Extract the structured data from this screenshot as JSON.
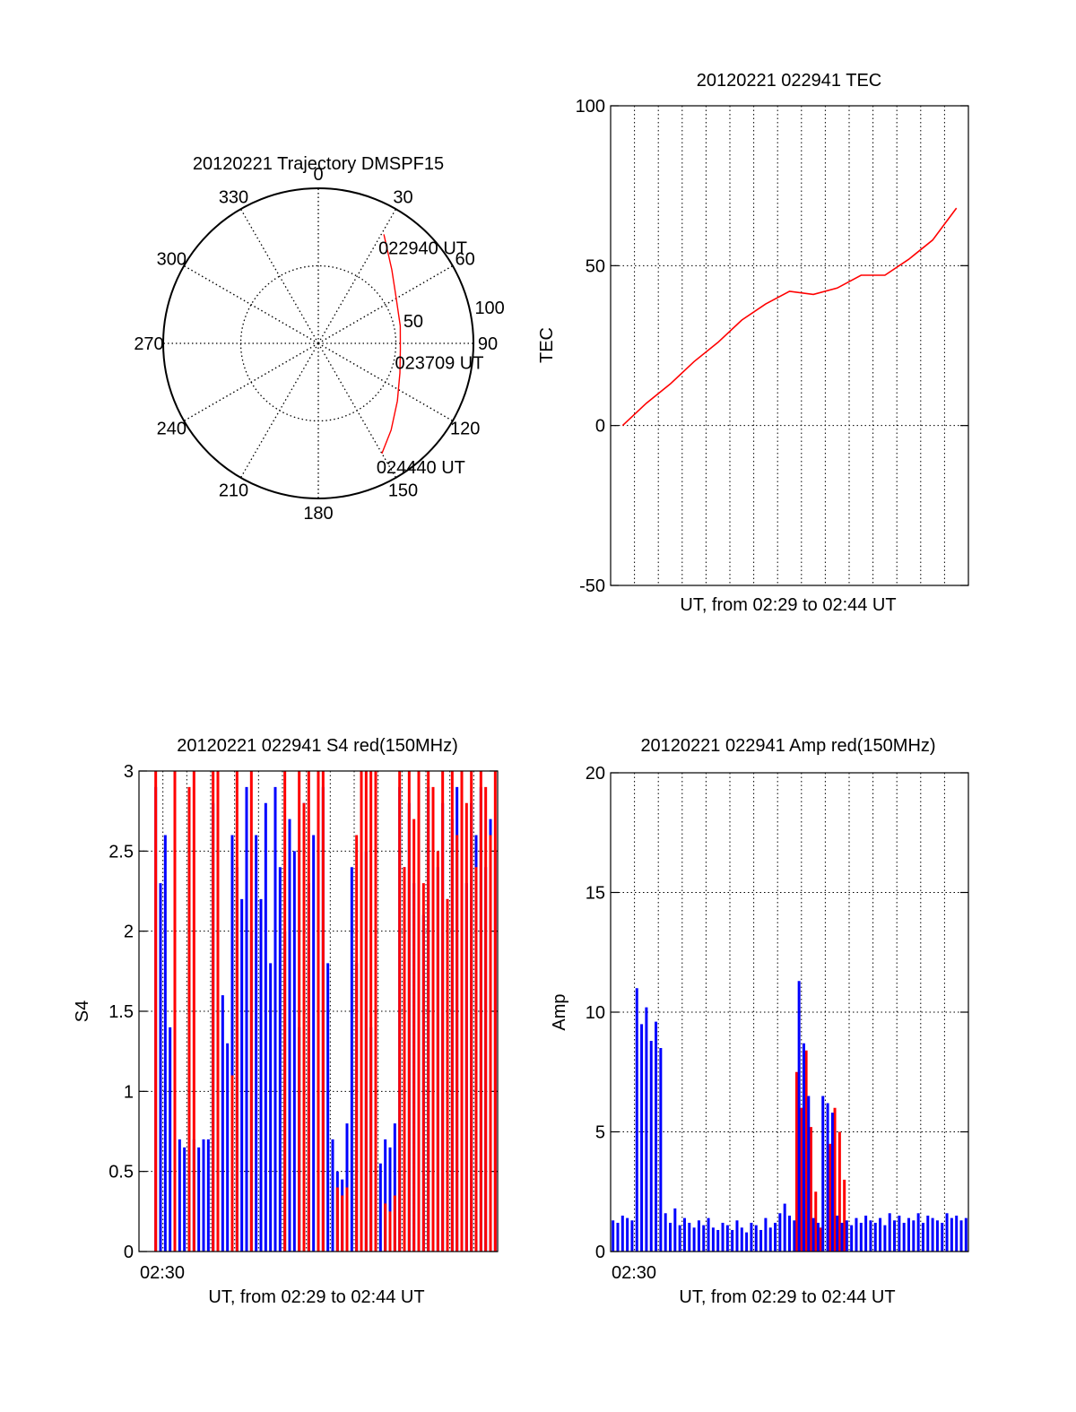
{
  "chart_data": [
    {
      "type": "polar",
      "title": "20120221 Trajectory DMSPF15",
      "angle_ticks": [
        "0",
        "30",
        "60",
        "90",
        "120",
        "150",
        "180",
        "210",
        "240",
        "270",
        "300",
        "330"
      ],
      "radius_ticks": [
        "50",
        "100"
      ],
      "radius_max": 100,
      "grid": "dotted",
      "series": [
        {
          "color": "#ff0000",
          "points": [
            {
              "azimuth": 31,
              "radius": 82
            },
            {
              "azimuth": 45,
              "radius": 67
            },
            {
              "azimuth": 60,
              "radius": 58
            },
            {
              "azimuth": 78,
              "radius": 54
            },
            {
              "azimuth": 94,
              "radius": 53
            },
            {
              "azimuth": 110,
              "radius": 56
            },
            {
              "azimuth": 126,
              "radius": 63
            },
            {
              "azimuth": 140,
              "radius": 73
            },
            {
              "azimuth": 150,
              "radius": 82
            }
          ]
        }
      ],
      "annotations": [
        {
          "text": "022940 UT",
          "azimuth": 31,
          "radius": 82
        },
        {
          "text": "023709 UT",
          "azimuth": 94,
          "radius": 53
        },
        {
          "text": "024440 UT",
          "azimuth": 150,
          "radius": 82
        }
      ]
    },
    {
      "type": "line",
      "title": "20120221 022941 TEC",
      "xlabel": "UT, from 02:29 to 02:44 UT",
      "ylabel": "TEC",
      "xlim": [
        0,
        15
      ],
      "ylim": [
        -50,
        100
      ],
      "yticks": [
        "-50",
        "0",
        "50",
        "100"
      ],
      "grid": true,
      "series": [
        {
          "color": "#ff0000",
          "x": [
            0.5,
            1.5,
            2.5,
            3.5,
            4.5,
            5.5,
            6.5,
            7.5,
            8.5,
            9.5,
            10.5,
            11.5,
            12.5,
            13.5,
            14.5
          ],
          "y": [
            0,
            7,
            13,
            20,
            26,
            33,
            38,
            42,
            41,
            43,
            47,
            47,
            52,
            58,
            68
          ]
        }
      ]
    },
    {
      "type": "line",
      "title": "20120221 022941 S4 red(150MHz)",
      "xlabel": "UT, from 02:29 to 02:44 UT",
      "ylabel": "S4",
      "xlim": [
        0,
        15
      ],
      "ylim": [
        0,
        3
      ],
      "yticks": [
        "0",
        "0.5",
        "1",
        "1.5",
        "2",
        "2.5",
        "3"
      ],
      "xticks": [
        {
          "value": 2,
          "label": "02:30"
        }
      ],
      "grid": true,
      "series": [
        {
          "color": "#0000ff",
          "x": [
            0.7,
            0.9,
            1.1,
            1.3,
            1.5,
            1.7,
            1.9,
            2.1,
            2.3,
            2.5,
            2.7,
            2.9,
            3.1,
            3.3,
            3.5,
            3.7,
            3.9,
            4.1,
            4.3,
            4.5,
            4.7,
            4.9,
            5.1,
            5.3,
            5.5,
            5.7,
            5.9,
            6.1,
            6.3,
            6.5,
            6.7,
            6.9,
            7.1,
            7.3,
            7.5,
            7.7,
            7.9,
            8.1,
            8.3,
            8.5,
            8.7,
            8.9,
            9.1,
            9.3,
            9.5,
            9.7,
            9.9,
            10.1,
            10.3,
            10.5,
            10.7,
            10.9,
            11.1,
            11.3,
            11.5,
            11.7,
            11.9,
            12.1,
            12.3,
            12.5,
            12.7,
            12.9,
            13.1,
            13.3,
            13.5,
            13.7,
            13.9,
            14.1,
            14.3,
            14.5,
            14.7,
            14.9
          ],
          "y": [
            2.9,
            2.3,
            2.6,
            1.4,
            2.1,
            0.7,
            0.65,
            0.6,
            0.7,
            0.65,
            0.7,
            0.7,
            2.8,
            2.4,
            1.6,
            1.3,
            2.6,
            2.4,
            2.2,
            2.9,
            2.0,
            2.6,
            2.2,
            2.8,
            1.8,
            2.9,
            2.4,
            2.0,
            2.7,
            2.5,
            1.4,
            2.8,
            2.3,
            2.6,
            2.0,
            2.9,
            1.8,
            0.7,
            0.5,
            0.45,
            0.8,
            2.4,
            1.8,
            2.9,
            2.5,
            1.4,
            0.6,
            0.55,
            0.7,
            0.65,
            0.8,
            2.9,
            2.4,
            2.8,
            2.3,
            2.7,
            2.1,
            2.9,
            2.6,
            2.4,
            2.8,
            2.2,
            2.7,
            2.9,
            2.5,
            2.3,
            2.8,
            2.6,
            2.9,
            2.4,
            2.7,
            2.5
          ]
        },
        {
          "color": "#ff0000",
          "x": [
            0.7,
            1.5,
            2.1,
            2.3,
            3.1,
            3.3,
            3.9,
            4.1,
            4.7,
            6.1,
            6.7,
            6.9,
            7.1,
            7.5,
            7.7,
            8.3,
            8.5,
            8.7,
            9.1,
            9.3,
            9.5,
            9.7,
            9.9,
            10.3,
            10.5,
            10.7,
            10.9,
            11.1,
            11.3,
            11.5,
            11.7,
            11.9,
            12.1,
            12.3,
            12.5,
            12.7,
            12.9,
            13.1,
            13.3,
            13.5,
            13.7,
            13.9,
            14.1,
            14.3,
            14.5,
            14.7,
            14.9
          ],
          "y": [
            3.0,
            3.0,
            2.9,
            3.0,
            3.0,
            3.0,
            1.1,
            3.0,
            3.0,
            3.0,
            3.0,
            2.8,
            3.0,
            3.0,
            3.0,
            0.4,
            0.35,
            0.4,
            2.6,
            3.0,
            3.0,
            3.0,
            3.0,
            0.3,
            0.25,
            0.35,
            3.0,
            2.4,
            3.0,
            2.7,
            3.0,
            2.3,
            3.0,
            2.9,
            2.5,
            3.0,
            2.2,
            3.0,
            2.6,
            3.0,
            2.8,
            3.0,
            2.4,
            3.0,
            2.9,
            2.6,
            3.0
          ]
        }
      ]
    },
    {
      "type": "line",
      "title": "20120221 022941 Amp red(150MHz)",
      "xlabel": "UT, from 02:29 to 02:44 UT",
      "ylabel": "Amp",
      "xlim": [
        0,
        15
      ],
      "ylim": [
        0,
        20
      ],
      "yticks": [
        "0",
        "5",
        "10",
        "15",
        "20"
      ],
      "xticks": [
        {
          "value": 2,
          "label": "02:30"
        }
      ],
      "grid": true,
      "series": [
        {
          "color": "#ff0000",
          "x": [
            7.8,
            8.0,
            8.2,
            8.4,
            8.6,
            8.8,
            9.2,
            9.4,
            9.6,
            9.8
          ],
          "y": [
            7.5,
            6.0,
            8.4,
            5.2,
            2.5,
            1.0,
            4.5,
            6.0,
            5.0,
            3.0
          ]
        },
        {
          "color": "#0000ff",
          "x": [
            0.1,
            0.3,
            0.5,
            0.7,
            0.9,
            1.1,
            1.3,
            1.5,
            1.7,
            1.9,
            2.1,
            2.3,
            2.5,
            2.7,
            2.9,
            3.1,
            3.3,
            3.5,
            3.7,
            3.9,
            4.1,
            4.3,
            4.5,
            4.7,
            4.9,
            5.1,
            5.3,
            5.5,
            5.7,
            5.9,
            6.1,
            6.3,
            6.5,
            6.7,
            6.9,
            7.1,
            7.3,
            7.5,
            7.7,
            7.9,
            8.1,
            8.3,
            8.5,
            8.7,
            8.9,
            9.1,
            9.3,
            9.5,
            9.7,
            9.9,
            10.1,
            10.3,
            10.5,
            10.7,
            10.9,
            11.1,
            11.3,
            11.5,
            11.7,
            11.9,
            12.1,
            12.3,
            12.5,
            12.7,
            12.9,
            13.1,
            13.3,
            13.5,
            13.7,
            13.9,
            14.1,
            14.3,
            14.5,
            14.7,
            14.9
          ],
          "y": [
            1.3,
            1.2,
            1.5,
            1.4,
            1.3,
            11.0,
            9.5,
            10.2,
            8.8,
            9.6,
            8.5,
            1.6,
            1.2,
            1.8,
            1.1,
            1.4,
            1.2,
            1.0,
            1.3,
            1.1,
            1.4,
            1.0,
            0.9,
            1.2,
            1.1,
            0.9,
            1.3,
            1.0,
            0.8,
            1.2,
            1.1,
            0.9,
            1.4,
            1.0,
            1.2,
            1.6,
            2.0,
            1.5,
            1.3,
            11.3,
            8.7,
            6.5,
            1.4,
            1.2,
            6.5,
            6.2,
            5.8,
            1.5,
            1.2,
            1.3,
            1.1,
            1.4,
            1.2,
            1.5,
            1.3,
            1.2,
            1.4,
            1.1,
            1.6,
            1.3,
            1.5,
            1.2,
            1.4,
            1.3,
            1.6,
            1.2,
            1.5,
            1.4,
            1.3,
            1.2,
            1.6,
            1.4,
            1.5,
            1.3,
            1.4
          ]
        }
      ]
    }
  ]
}
